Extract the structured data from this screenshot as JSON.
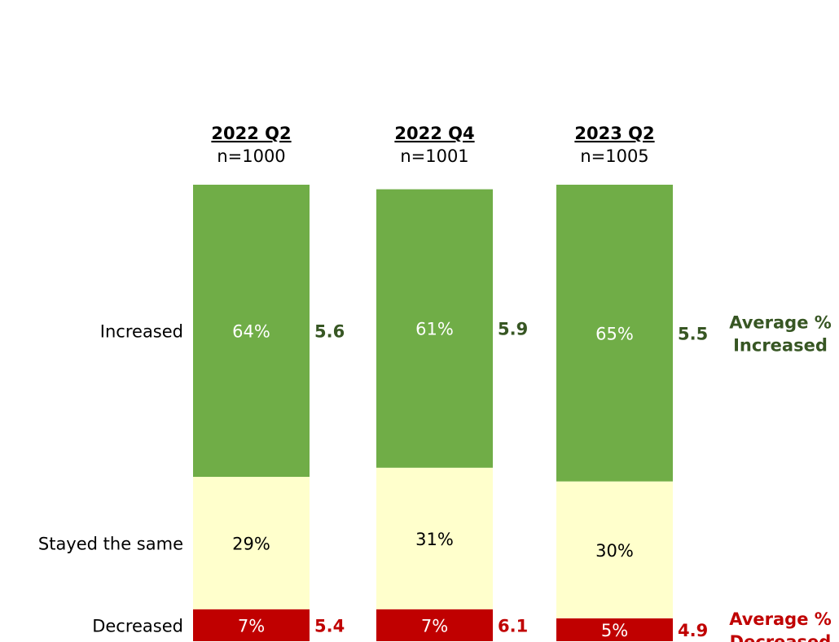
{
  "chart_data": {
    "type": "stacked_bar",
    "categories": [
      "2022 Q2",
      "2022 Q4",
      "2023 Q2"
    ],
    "sample_sizes": [
      "n=1000",
      "n=1001",
      "n=1005"
    ],
    "ylim": [
      0,
      100
    ],
    "series": [
      {
        "name": "Decreased",
        "color": "#c00000",
        "label_color": "#ffffff",
        "values": [
          7,
          7,
          5
        ],
        "value_labels": [
          "7%",
          "7%",
          "5%"
        ]
      },
      {
        "name": "Stayed the same",
        "color": "#ffffcc",
        "label_color": "#000000",
        "values": [
          29,
          31,
          30
        ],
        "value_labels": [
          "29%",
          "31%",
          "30%"
        ]
      },
      {
        "name": "Increased",
        "color": "#70ad47",
        "label_color": "#ffffff",
        "values": [
          64,
          61,
          65
        ],
        "value_labels": [
          "64%",
          "61%",
          "65%"
        ]
      }
    ],
    "average_increased": {
      "title": [
        "Average %",
        "Increased"
      ],
      "color": "#375623",
      "values": [
        5.6,
        5.9,
        5.5
      ]
    },
    "average_decreased": {
      "title": [
        "Average %",
        "Decreased"
      ],
      "color": "#c00000",
      "values": [
        5.4,
        6.1,
        4.9
      ]
    }
  }
}
